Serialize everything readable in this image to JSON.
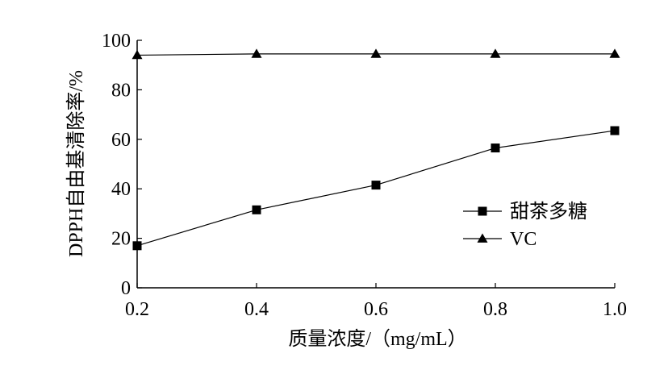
{
  "chart_data": {
    "type": "line",
    "xlabel": "质量浓度/（mg/mL）",
    "ylabel": "DPPH自由基清除率/%",
    "x": [
      0.2,
      0.4,
      0.6,
      0.8,
      1.0
    ],
    "xticks": [
      "0.2",
      "0.4",
      "0.6",
      "0.8",
      "1.0"
    ],
    "yticks": [
      "0",
      "20",
      "40",
      "60",
      "80",
      "100"
    ],
    "xlim": [
      0.2,
      1.0
    ],
    "ylim": [
      0,
      100
    ],
    "grid": false,
    "legend_position": "right",
    "series": [
      {
        "name": "甜茶多糖",
        "marker": "square",
        "values": [
          17,
          31.5,
          41.5,
          56.5,
          63.5
        ]
      },
      {
        "name": "VC",
        "marker": "triangle",
        "values": [
          94,
          94.5,
          94.5,
          94.5,
          94.5
        ]
      }
    ]
  }
}
